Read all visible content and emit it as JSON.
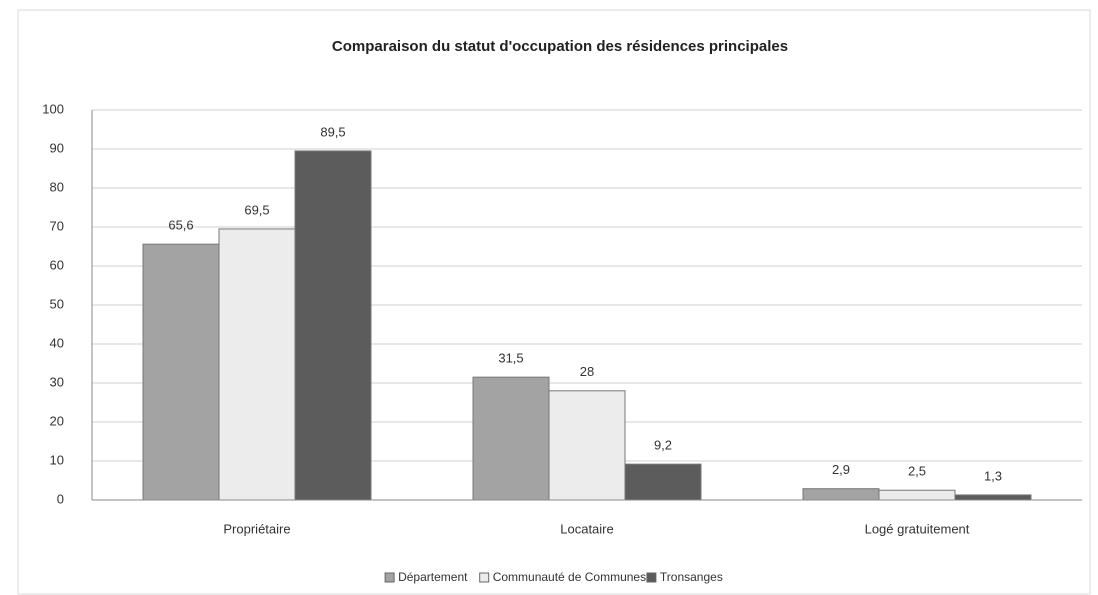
{
  "chart_data": {
    "type": "bar",
    "title": "Comparaison du statut d'occupation des résidences principales",
    "categories": [
      "Propriétaire",
      "Locataire",
      "Logé gratuitement"
    ],
    "series": [
      {
        "name": "Département",
        "color": "#a3a3a3",
        "values": [
          65.6,
          31.5,
          2.9
        ],
        "value_labels": [
          "65,6",
          "31,5",
          "2,9"
        ]
      },
      {
        "name": "Communauté de Communes",
        "color": "#ececec",
        "values": [
          69.5,
          28,
          2.5
        ],
        "value_labels": [
          "69,5",
          "28",
          "2,5"
        ]
      },
      {
        "name": "Tronsanges",
        "color": "#5c5c5c",
        "values": [
          89.5,
          9.2,
          1.3
        ],
        "value_labels": [
          "89,5",
          "9,2",
          "1,3"
        ]
      }
    ],
    "ylim": [
      0,
      100
    ],
    "yticks": [
      0,
      10,
      20,
      30,
      40,
      50,
      60,
      70,
      80,
      90,
      100
    ],
    "grid": true,
    "legend": "bottom"
  }
}
